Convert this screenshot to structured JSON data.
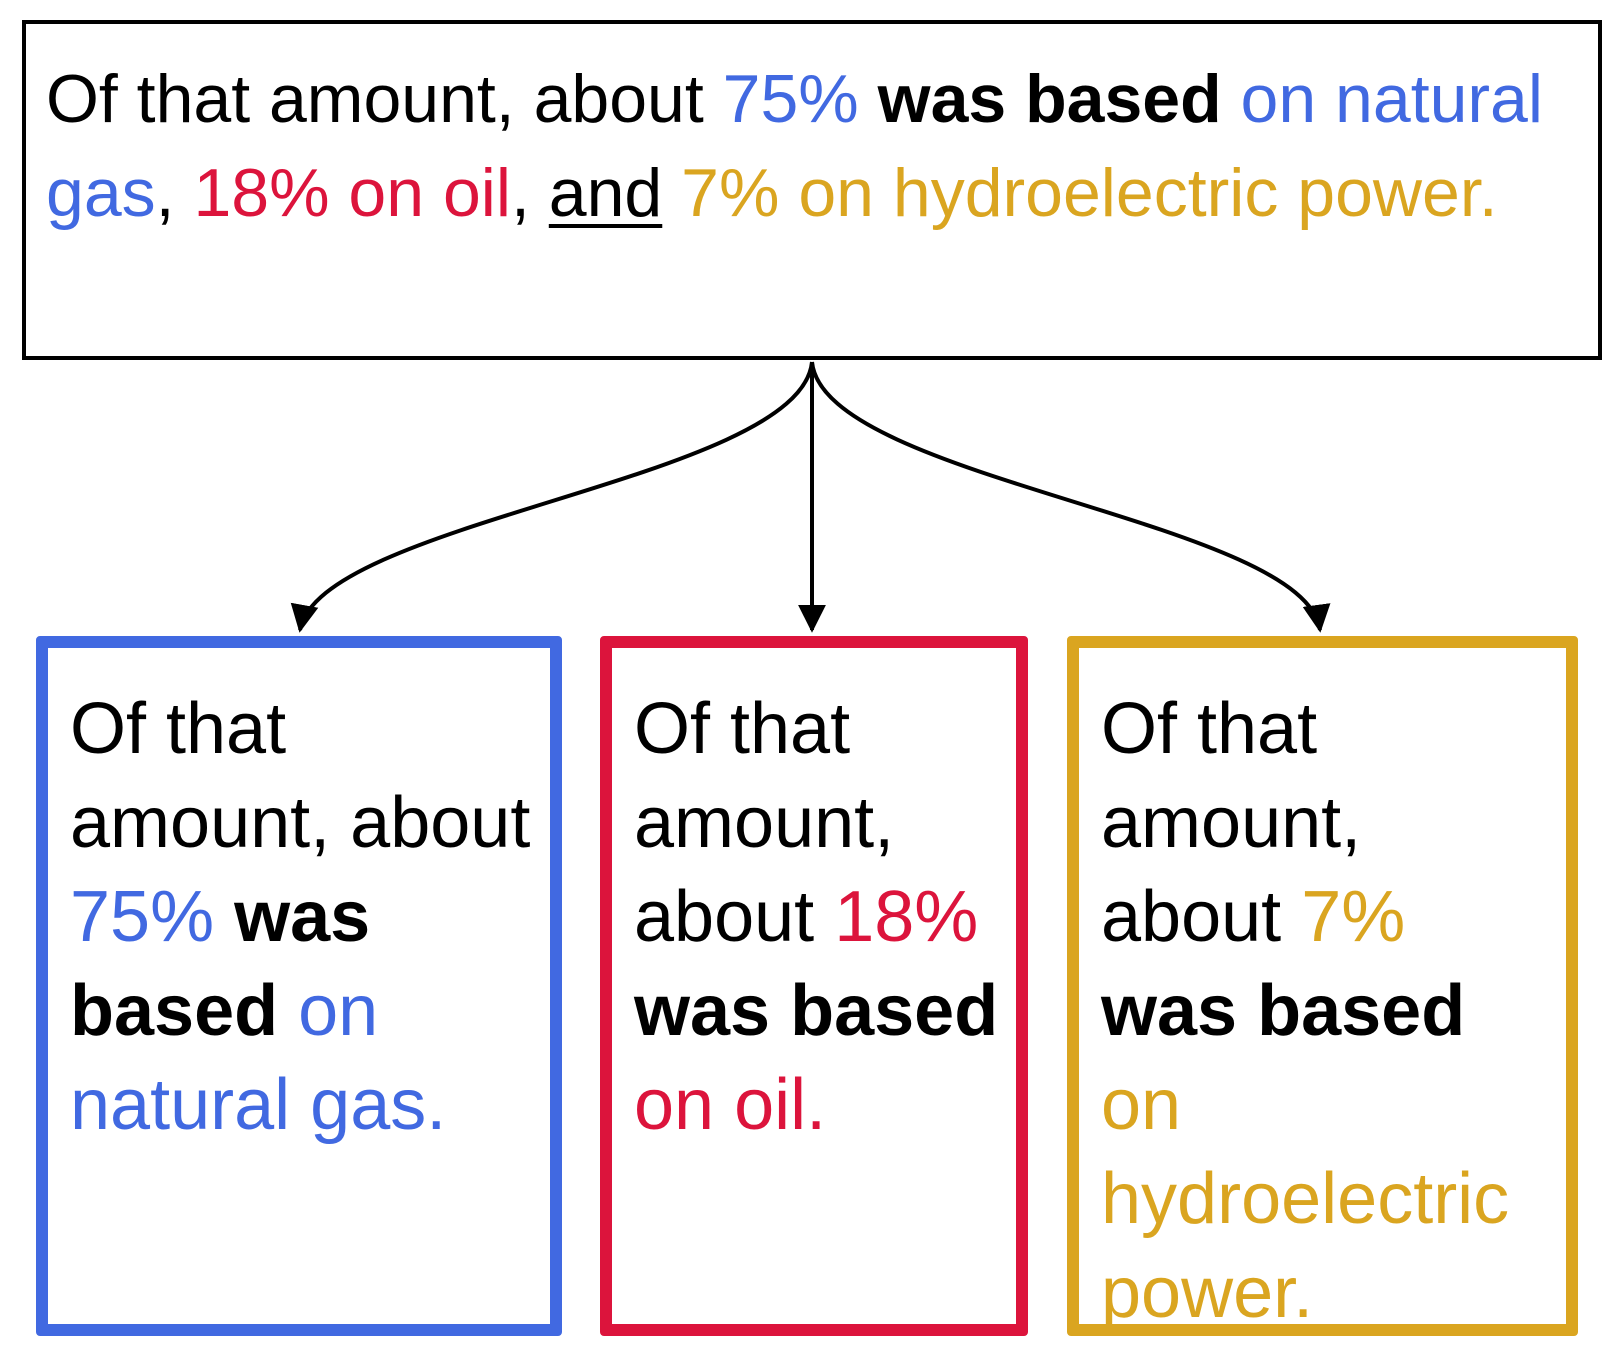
{
  "colors": {
    "gas": "#4169E1",
    "oil": "#DC143C",
    "hydro": "#DAA520",
    "text": "#000000"
  },
  "source": {
    "s1": "Of that amount, about ",
    "pct_gas": "75%",
    "s2": " ",
    "bold": "was based",
    "s3": " ",
    "gas_phrase": "on natural gas",
    "s4": ", ",
    "oil_phrase": "18% on oil",
    "s5": ", ",
    "and_word": "and",
    "s6": " ",
    "hydro_phrase": "7% on hydroelectric power."
  },
  "children": [
    {
      "lead": "Of that amount, about ",
      "pct": "75%",
      "bold": "was based",
      "tail": "on natural gas.",
      "color_key": "gas"
    },
    {
      "lead": "Of that amount, about ",
      "pct": "18%",
      "bold": "was based",
      "tail": "on oil.",
      "color_key": "oil"
    },
    {
      "lead": "Of that amount, about ",
      "pct": "7%",
      "bold": "was based",
      "tail": "on hydroelectric power.",
      "color_key": "hydro"
    }
  ],
  "arrows": {
    "stroke": "#000000"
  }
}
